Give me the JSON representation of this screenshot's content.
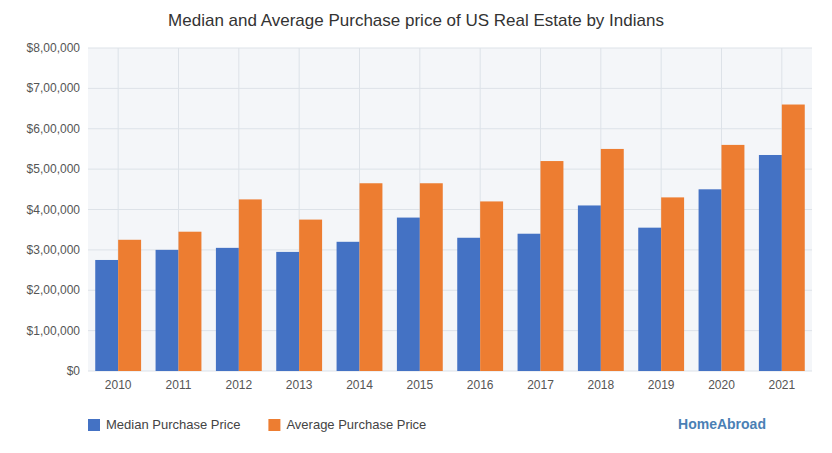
{
  "chart_data": {
    "type": "bar",
    "title": "Median and Average Purchase price of US Real Estate by Indians",
    "categories": [
      "2010",
      "2011",
      "2012",
      "2013",
      "2014",
      "2015",
      "2016",
      "2017",
      "2018",
      "2019",
      "2020",
      "2021"
    ],
    "series": [
      {
        "name": "Median Purchase Price",
        "color": "#4472c4",
        "values": [
          275000,
          300000,
          305000,
          295000,
          320000,
          380000,
          330000,
          340000,
          410000,
          355000,
          450000,
          535000
        ]
      },
      {
        "name": "Average Purchase Price",
        "color": "#ed7d31",
        "values": [
          325000,
          345000,
          425000,
          375000,
          465000,
          465000,
          420000,
          520000,
          550000,
          430000,
          560000,
          660000
        ]
      }
    ],
    "ylim": [
      0,
      800000
    ],
    "yticks": [
      {
        "value": 0,
        "label": "$0"
      },
      {
        "value": 100000,
        "label": "$1,00,000"
      },
      {
        "value": 200000,
        "label": "$2,00,000"
      },
      {
        "value": 300000,
        "label": "$3,00,000"
      },
      {
        "value": 400000,
        "label": "$4,00,000"
      },
      {
        "value": 500000,
        "label": "$5,00,000"
      },
      {
        "value": 600000,
        "label": "$6,00,000"
      },
      {
        "value": 700000,
        "label": "$7,00,000"
      },
      {
        "value": 800000,
        "label": "$8,00,000"
      }
    ],
    "grid": true,
    "legend": "bottom",
    "annotations": [
      "HomeAbroad"
    ]
  }
}
